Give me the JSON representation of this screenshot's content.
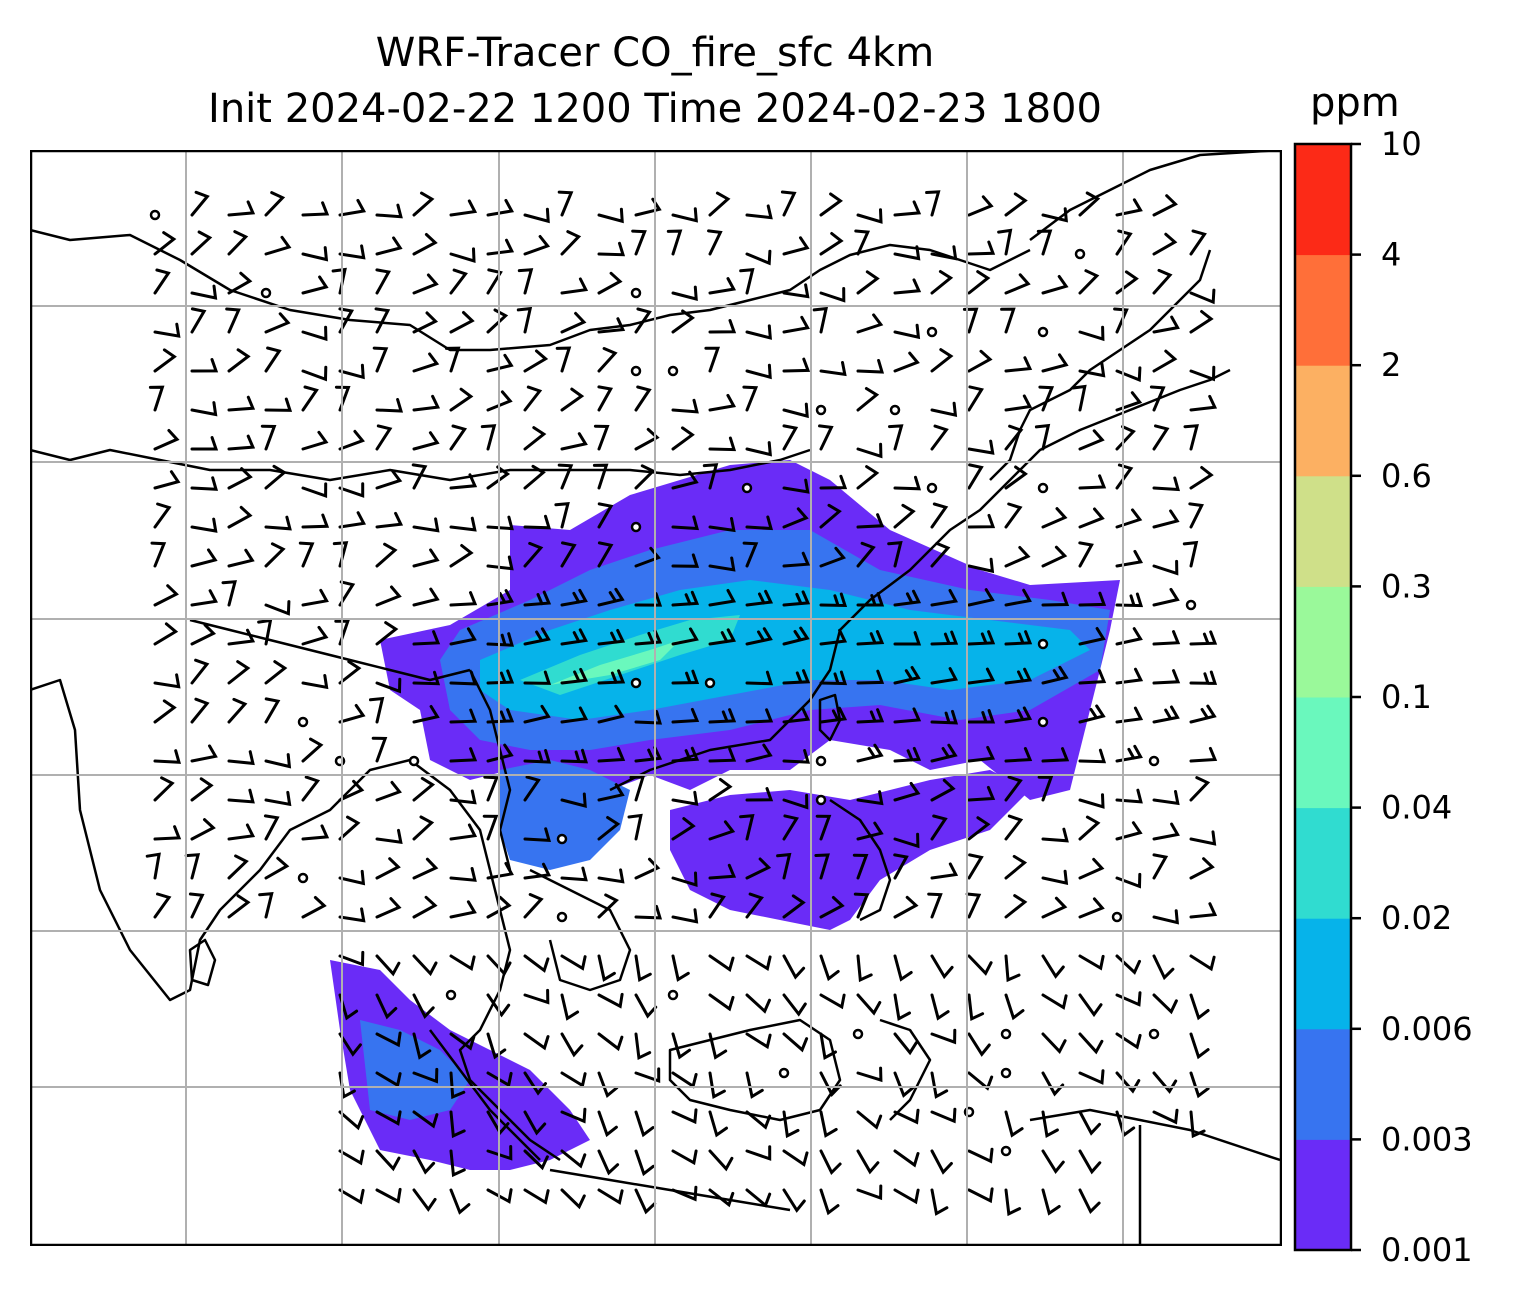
{
  "title": {
    "line1": "WRF-Tracer CO_fire_sfc 4km",
    "line2": "Init 2024-02-22 1200 Time 2024-02-23 1800"
  },
  "colorbar": {
    "unit": "ppm",
    "levels": [
      "0.001",
      "0.003",
      "0.006",
      "0.02",
      "0.04",
      "0.1",
      "0.3",
      "0.6",
      "2",
      "4",
      "10"
    ],
    "colors": [
      "#6a2cf7",
      "#3774f0",
      "#06b3ea",
      "#30dcd0",
      "#6af8bd",
      "#9af99a",
      "#cfe089",
      "#fcb062",
      "#ff6f39",
      "#fc2a17"
    ]
  },
  "map": {
    "gridlines": true,
    "grid_color": "#b0b0b0",
    "coastline_color": "#000000",
    "wind_barb_color": "#000000"
  }
}
